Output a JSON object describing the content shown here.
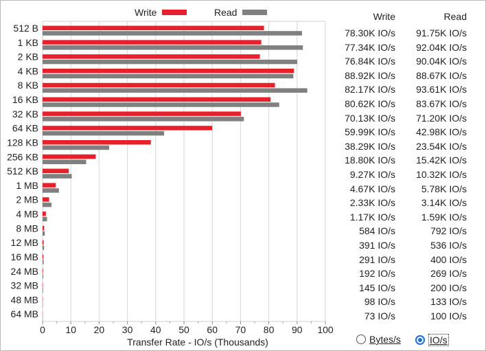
{
  "chart_data": {
    "type": "bar",
    "orientation": "horizontal",
    "categories": [
      "512 B",
      "1 KB",
      "2 KB",
      "4 KB",
      "8 KB",
      "16 KB",
      "32 KB",
      "64 KB",
      "128 KB",
      "256 KB",
      "512 KB",
      "1 MB",
      "2 MB",
      "4 MB",
      "8 MB",
      "12 MB",
      "16 MB",
      "24 MB",
      "32 MB",
      "48 MB",
      "64 MB"
    ],
    "series": [
      {
        "name": "Write",
        "color": "#e8202a",
        "values": [
          78.3,
          77.34,
          76.84,
          88.92,
          82.17,
          80.62,
          70.13,
          59.99,
          38.29,
          18.8,
          9.27,
          4.67,
          2.33,
          1.17,
          0.584,
          0.391,
          0.291,
          0.192,
          0.145,
          0.098,
          0.073
        ]
      },
      {
        "name": "Read",
        "color": "#808080",
        "values": [
          91.75,
          92.04,
          90.04,
          88.67,
          93.61,
          83.67,
          71.2,
          42.98,
          23.54,
          15.42,
          10.32,
          5.78,
          3.14,
          1.59,
          0.792,
          0.536,
          0.4,
          0.269,
          0.2,
          0.133,
          0.1
        ]
      }
    ],
    "xlabel": "Transfer Rate - IO/s (Thousands)",
    "xlim": [
      0,
      100
    ],
    "xticks": [
      "0",
      "10",
      "20",
      "30",
      "40",
      "50",
      "60",
      "70",
      "80",
      "90",
      "100"
    ],
    "grid": true,
    "legend_position": "top"
  },
  "table": {
    "write_header": "Write",
    "read_header": "Read",
    "write_values": [
      "78.30K IO/s",
      "77.34K IO/s",
      "76.84K IO/s",
      "88.92K IO/s",
      "82.17K IO/s",
      "80.62K IO/s",
      "70.13K IO/s",
      "59.99K IO/s",
      "38.29K IO/s",
      "18.80K IO/s",
      "9.27K IO/s",
      "4.67K IO/s",
      "2.33K IO/s",
      "1.17K IO/s",
      "584 IO/s",
      "391 IO/s",
      "291 IO/s",
      "192 IO/s",
      "145 IO/s",
      "98 IO/s",
      "73 IO/s"
    ],
    "read_values": [
      "91.75K IO/s",
      "92.04K IO/s",
      "90.04K IO/s",
      "88.67K IO/s",
      "93.61K IO/s",
      "83.67K IO/s",
      "71.20K IO/s",
      "42.98K IO/s",
      "23.54K IO/s",
      "15.42K IO/s",
      "10.32K IO/s",
      "5.78K IO/s",
      "3.14K IO/s",
      "1.59K IO/s",
      "792 IO/s",
      "536 IO/s",
      "400 IO/s",
      "269 IO/s",
      "200 IO/s",
      "133 IO/s",
      "100 IO/s"
    ]
  },
  "controls": {
    "bytes_label": "Bytes/s",
    "ios_label": "IO/s",
    "selected": "IO/s"
  }
}
